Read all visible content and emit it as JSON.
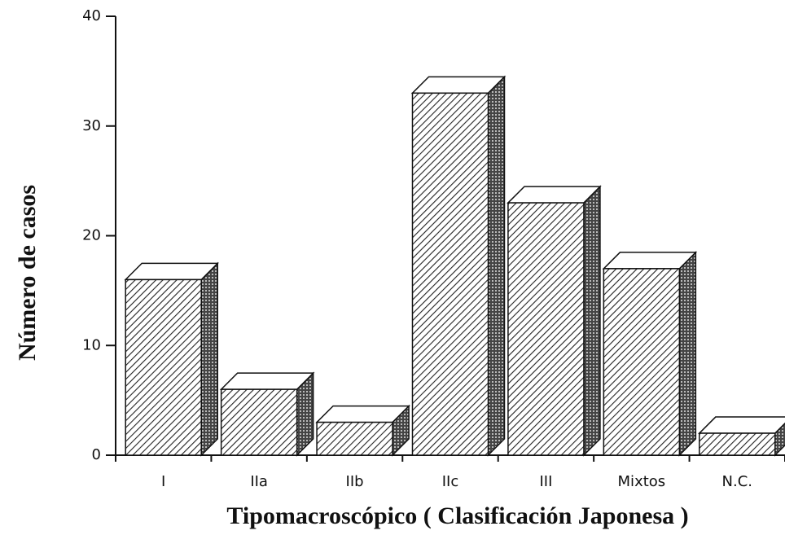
{
  "chart_data": {
    "type": "bar",
    "x_label": "Tipomacroscópico ( Clasificación Japonesa )",
    "y_label": "Número de casos",
    "categories": [
      "I",
      "IIa",
      "IIb",
      "IIc",
      "III",
      "Mixtos",
      "N.C."
    ],
    "values": [
      16,
      6,
      3,
      33,
      23,
      17,
      2
    ],
    "color": "#ffffff",
    "ylim": [
      0,
      40
    ],
    "yticks": [
      0,
      10,
      20,
      30,
      40
    ],
    "grid": false
  }
}
